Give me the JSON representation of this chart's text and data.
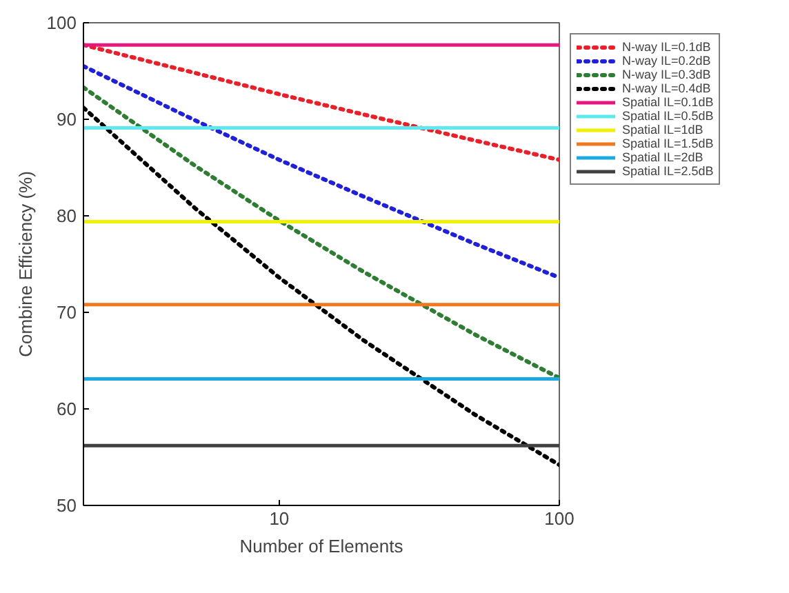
{
  "chart_data": {
    "type": "line",
    "xlabel": "Number of Elements",
    "ylabel": "Combine Efficiency (%)",
    "log": "x",
    "xlim": [
      2,
      100
    ],
    "xticks": [
      10,
      100
    ],
    "ylim": [
      50,
      100
    ],
    "yticks": [
      50,
      60,
      70,
      80,
      90,
      100
    ],
    "grid": false,
    "legend": "top right",
    "marker": "none",
    "series": [
      {
        "name": "N-way IL=0.1dB",
        "color": "#e8202a",
        "line_style": "dotted",
        "x": [
          2,
          5,
          10,
          20,
          50,
          100
        ],
        "values": [
          97.7,
          94.8,
          92.6,
          90.5,
          87.8,
          85.8
        ]
      },
      {
        "name": "N-way IL=0.2dB",
        "color": "#2020d8",
        "line_style": "dotted",
        "x": [
          2,
          5,
          10,
          20,
          50,
          100
        ],
        "values": [
          95.5,
          89.9,
          85.8,
          82.0,
          77.1,
          73.6
        ]
      },
      {
        "name": "N-way IL=0.3dB",
        "color": "#2e7d32",
        "line_style": "dotted",
        "x": [
          2,
          5,
          10,
          20,
          50,
          100
        ],
        "values": [
          93.3,
          85.2,
          79.5,
          74.2,
          67.7,
          63.2
        ]
      },
      {
        "name": "N-way IL=0.4dB",
        "color": "#000000",
        "line_style": "dotted",
        "x": [
          2,
          5,
          10,
          20,
          50,
          100
        ],
        "values": [
          91.2,
          80.8,
          73.6,
          67.1,
          59.4,
          54.2
        ]
      },
      {
        "name": "Spatial IL=0.1dB",
        "color": "#e6177f",
        "line_style": "solid",
        "x": [
          2,
          100
        ],
        "values": [
          97.7,
          97.7
        ]
      },
      {
        "name": "Spatial IL=0.5dB",
        "color": "#5ee8f0",
        "line_style": "solid",
        "x": [
          2,
          100
        ],
        "values": [
          89.1,
          89.1
        ]
      },
      {
        "name": "Spatial IL=1dB",
        "color": "#f0f000",
        "line_style": "solid",
        "x": [
          2,
          100
        ],
        "values": [
          79.4,
          79.4
        ]
      },
      {
        "name": "Spatial IL=1.5dB",
        "color": "#f07820",
        "line_style": "solid",
        "x": [
          2,
          100
        ],
        "values": [
          70.8,
          70.8
        ]
      },
      {
        "name": "Spatial IL=2dB",
        "color": "#1ea8e0",
        "line_style": "solid",
        "x": [
          2,
          100
        ],
        "values": [
          63.1,
          63.1
        ]
      },
      {
        "name": "Spatial IL=2.5dB",
        "color": "#404040",
        "line_style": "solid",
        "x": [
          2,
          100
        ],
        "values": [
          56.2,
          56.2
        ]
      }
    ]
  }
}
